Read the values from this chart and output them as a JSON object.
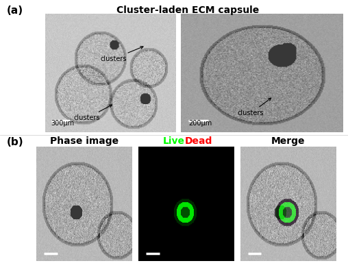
{
  "fig_width": 5.08,
  "fig_height": 3.97,
  "dpi": 100,
  "background_color": "#ffffff",
  "panel_a_title": "Cluster-laden ECM capsule",
  "panel_a_title_fontsize": 10,
  "panel_a_label": "(a)",
  "panel_b_label": "(b)",
  "label_fontsize": 11,
  "scale_bar_left": "300μm",
  "scale_bar_right": "200μm",
  "annotation_clusters1": "clusters",
  "annotation_clusters2": "clusters",
  "annotation_clusters3": "clusters",
  "phase_image_label": "Phase image",
  "live_label": "Live",
  "dead_label": "Dead",
  "merge_label": "Merge",
  "sublabel_fontsize": 10,
  "live_color": "#00ff00",
  "dead_color": "#ff0000",
  "annotation_fontsize": 7,
  "scalebar_text_fontsize": 7,
  "title_italic": false
}
